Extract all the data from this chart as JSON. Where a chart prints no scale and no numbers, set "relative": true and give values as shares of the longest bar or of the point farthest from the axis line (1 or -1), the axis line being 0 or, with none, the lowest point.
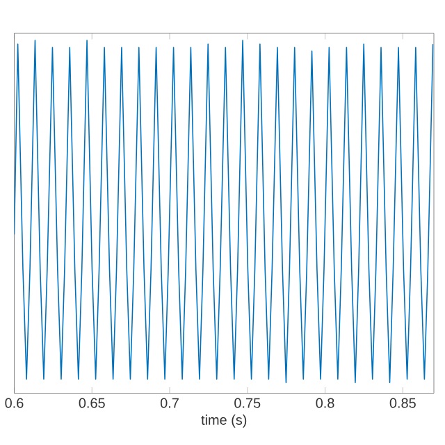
{
  "chart_data": {
    "type": "line",
    "xlabel": "time (s)",
    "relative": true,
    "xlim": [
      0.6,
      0.87
    ],
    "xticks": [
      0.6,
      0.65,
      0.7,
      0.75,
      0.8,
      0.85
    ],
    "grid": false,
    "marker": "none",
    "line_style": "solid",
    "series": [
      {
        "color": "#0072bd",
        "x": [
          0.6,
          0.6023,
          0.6056,
          0.6079,
          0.6101,
          0.6134,
          0.6167,
          0.619,
          0.6212,
          0.6246,
          0.6279,
          0.6302,
          0.6324,
          0.6357,
          0.639,
          0.6413,
          0.6435,
          0.6468,
          0.6501,
          0.6524,
          0.6546,
          0.658,
          0.6613,
          0.6636,
          0.6658,
          0.6691,
          0.6724,
          0.6747,
          0.6769,
          0.6802,
          0.6835,
          0.6858,
          0.688,
          0.6913,
          0.6946,
          0.6969,
          0.6991,
          0.7025,
          0.7058,
          0.7081,
          0.7103,
          0.7136,
          0.7169,
          0.7192,
          0.7214,
          0.7247,
          0.728,
          0.7303,
          0.7325,
          0.7359,
          0.7392,
          0.7415,
          0.7437,
          0.747,
          0.7503,
          0.7526,
          0.7548,
          0.7581,
          0.7614,
          0.7637,
          0.7659,
          0.7693,
          0.7726,
          0.7749,
          0.7771,
          0.7804,
          0.7837,
          0.786,
          0.7882,
          0.7915,
          0.7948,
          0.7971,
          0.7993,
          0.8026,
          0.8059,
          0.8082,
          0.8104,
          0.8138,
          0.8171,
          0.8194,
          0.8216,
          0.8249,
          0.8282,
          0.8305,
          0.8327,
          0.836,
          0.8393,
          0.8416,
          0.8438,
          0.8472,
          0.8505,
          0.8528,
          0.855,
          0.8583,
          0.8616,
          0.8639,
          0.8661,
          0.8694
        ],
        "values": [
          0.45,
          0.99,
          0.35,
          0.04,
          0.35,
          1,
          0.35,
          0.04,
          0.35,
          0.98,
          0.35,
          0.04,
          0.35,
          0.98,
          0.35,
          0.04,
          0.35,
          1,
          0.35,
          0.04,
          0.35,
          0.98,
          0.35,
          0.04,
          0.35,
          0.98,
          0.35,
          0.04,
          0.35,
          0.98,
          0.35,
          0.04,
          0.35,
          0.98,
          0.35,
          0.04,
          0.35,
          0.98,
          0.35,
          0.04,
          0.35,
          0.98,
          0.35,
          0.04,
          0.35,
          0.99,
          0.35,
          0.04,
          0.35,
          0.98,
          0.35,
          0.04,
          0.35,
          1,
          0.35,
          0.04,
          0.35,
          0.99,
          0.35,
          0.04,
          0.35,
          0.98,
          0.35,
          0.03,
          0.35,
          0.98,
          0.35,
          0.04,
          0.35,
          0.97,
          0.35,
          0.04,
          0.35,
          0.98,
          0.35,
          0.04,
          0.35,
          0.98,
          0.35,
          0.03,
          0.35,
          0.99,
          0.35,
          0.04,
          0.35,
          0.98,
          0.35,
          0.03,
          0.35,
          0.98,
          0.35,
          0.04,
          0.35,
          0.98,
          0.35,
          0.04,
          0.35,
          0.99
        ]
      }
    ]
  }
}
